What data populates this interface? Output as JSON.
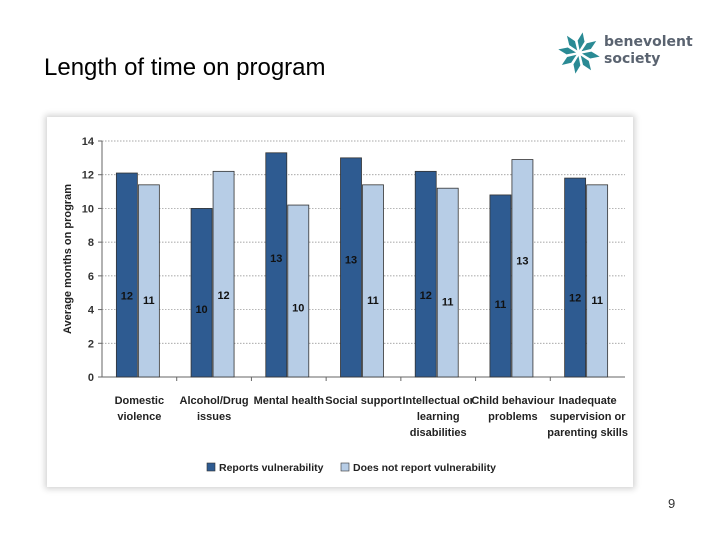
{
  "slide": {
    "title": "Length of time on program",
    "page_number": "9"
  },
  "logo": {
    "line1": "benevolent",
    "line2": "society",
    "icon": "star-snowflake-icon",
    "color": "#2a8a94"
  },
  "colors": {
    "series1": "#2e5b91",
    "series2": "#b7cde6"
  },
  "chart_data": {
    "type": "bar",
    "title": "",
    "xlabel": "",
    "ylabel": "Average months on program",
    "ylim": [
      0,
      14
    ],
    "yticks": [
      0,
      2,
      4,
      6,
      8,
      10,
      12,
      14
    ],
    "grid": true,
    "legend_position": "bottom",
    "categories": [
      [
        "Domestic",
        "violence"
      ],
      [
        "Alcohol/Drug",
        "issues"
      ],
      [
        "Mental health"
      ],
      [
        "Social support"
      ],
      [
        "Intellectual or",
        "learning",
        "disabilities"
      ],
      [
        "Child behaviour",
        "problems"
      ],
      [
        "Inadequate",
        "supervision or",
        "parenting skills"
      ]
    ],
    "series": [
      {
        "name": "Reports vulnerability",
        "values": [
          12.1,
          10.0,
          13.3,
          13.0,
          12.2,
          10.8,
          11.8
        ],
        "labels": [
          "12",
          "10",
          "13",
          "13",
          "12",
          "11",
          "12"
        ]
      },
      {
        "name": "Does not report vulnerability",
        "values": [
          11.4,
          12.2,
          10.2,
          11.4,
          11.2,
          12.9,
          11.4
        ],
        "labels": [
          "11",
          "12",
          "10",
          "11",
          "11",
          "13",
          "11"
        ]
      }
    ]
  }
}
